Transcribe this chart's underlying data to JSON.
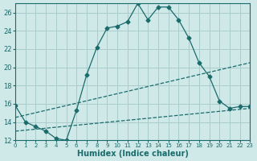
{
  "xlabel": "Humidex (Indice chaleur)",
  "background_color": "#cfe8e8",
  "grid_color": "#aacccc",
  "line_color": "#1a6b6b",
  "xlim": [
    0,
    23
  ],
  "ylim": [
    12,
    27
  ],
  "xticks": [
    0,
    1,
    2,
    3,
    4,
    5,
    6,
    7,
    8,
    9,
    10,
    11,
    12,
    13,
    14,
    15,
    16,
    17,
    18,
    19,
    20,
    21,
    22,
    23
  ],
  "yticks": [
    12,
    14,
    16,
    18,
    20,
    22,
    24,
    26
  ],
  "curve1_x": [
    0,
    1,
    2,
    3,
    4,
    5,
    6,
    7,
    8,
    9,
    10,
    11,
    12,
    13,
    14,
    15,
    16,
    17,
    18,
    19,
    20,
    21,
    22,
    23
  ],
  "curve1_y": [
    15.8,
    14.0,
    13.5,
    13.0,
    12.2,
    12.0,
    15.3,
    19.2,
    22.2,
    24.3,
    24.5,
    25.0,
    27.0,
    25.2,
    26.6,
    26.6,
    25.2,
    23.2,
    20.5,
    19.0,
    16.3,
    15.5,
    15.7,
    15.7
  ],
  "curve2_x": [
    0,
    23
  ],
  "curve2_y": [
    14.5,
    20.5
  ],
  "curve3_x": [
    0,
    23
  ],
  "curve3_y": [
    13.0,
    15.5
  ]
}
